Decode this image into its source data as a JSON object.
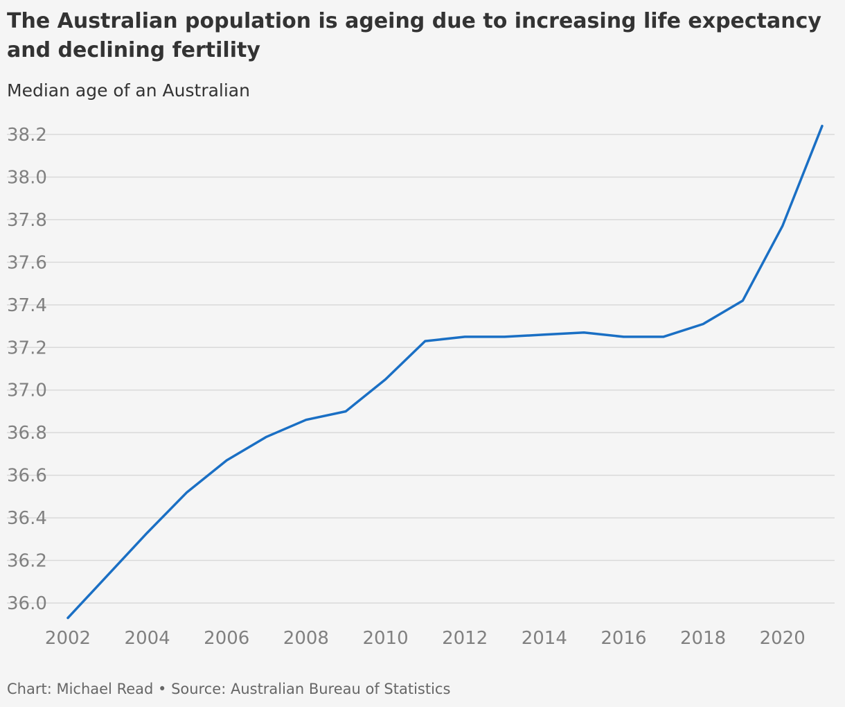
{
  "header": {
    "title": "The Australian population is ageing due to increasing life expectancy and declining fertility",
    "subtitle": "Median age of an Australian"
  },
  "footer": {
    "credit": "Chart: Michael Read • Source: Australian Bureau of Statistics"
  },
  "colors": {
    "line": "#1a6fc4",
    "grid": "#d9d9d9",
    "tick_text": "#808080",
    "background": "#f5f5f5"
  },
  "chart_data": {
    "type": "line",
    "title": "The Australian population is ageing due to increasing life expectancy and declining fertility",
    "subtitle": "Median age of an Australian",
    "xlabel": "",
    "ylabel": "",
    "x": [
      2002,
      2003,
      2004,
      2005,
      2006,
      2007,
      2008,
      2009,
      2010,
      2011,
      2012,
      2013,
      2014,
      2015,
      2016,
      2017,
      2018,
      2019,
      2020,
      2021
    ],
    "series": [
      {
        "values": [
          35.93,
          36.13,
          36.33,
          36.52,
          36.67,
          36.78,
          36.86,
          36.9,
          37.05,
          37.23,
          37.25,
          37.25,
          37.26,
          37.27,
          37.25,
          37.25,
          37.31,
          37.42,
          37.77,
          38.24
        ]
      }
    ],
    "xticks": [
      "2002",
      "2004",
      "2006",
      "2008",
      "2010",
      "2012",
      "2014",
      "2016",
      "2018",
      "2020"
    ],
    "yticks": [
      "36.0",
      "36.2",
      "36.4",
      "36.6",
      "36.8",
      "37.0",
      "37.2",
      "37.4",
      "37.6",
      "37.8",
      "38.0",
      "38.2"
    ],
    "xlim": [
      2002,
      2021
    ],
    "ylim": [
      35.93,
      38.24
    ],
    "grid": "horizontal",
    "legend": "none"
  }
}
